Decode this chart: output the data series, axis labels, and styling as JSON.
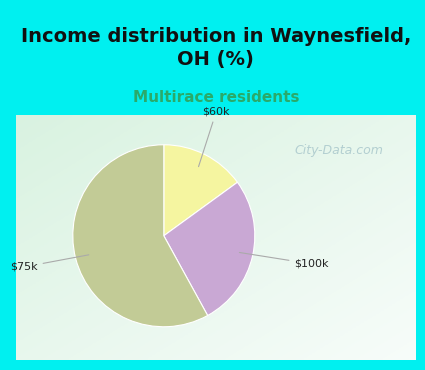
{
  "title": "Income distribution in Waynesfield,\nOH (%)",
  "subtitle": "Multirace residents",
  "slices": [
    {
      "label": "$75k",
      "value": 58,
      "color": "#c2cb96"
    },
    {
      "label": "$100k",
      "value": 27,
      "color": "#c9a8d4"
    },
    {
      "label": "$60k",
      "value": 15,
      "color": "#f5f5a0"
    }
  ],
  "start_angle": 90,
  "bg_cyan": "#00f0f0",
  "bg_chart": "#ddf0e8",
  "title_fontsize": 14,
  "subtitle_fontsize": 11,
  "subtitle_color": "#2aaa6a",
  "title_color": "#111111",
  "label_color": "#222222",
  "label_fontsize": 8,
  "watermark": "City-Data.com",
  "watermark_color": "#aac8cc",
  "watermark_fontsize": 9
}
